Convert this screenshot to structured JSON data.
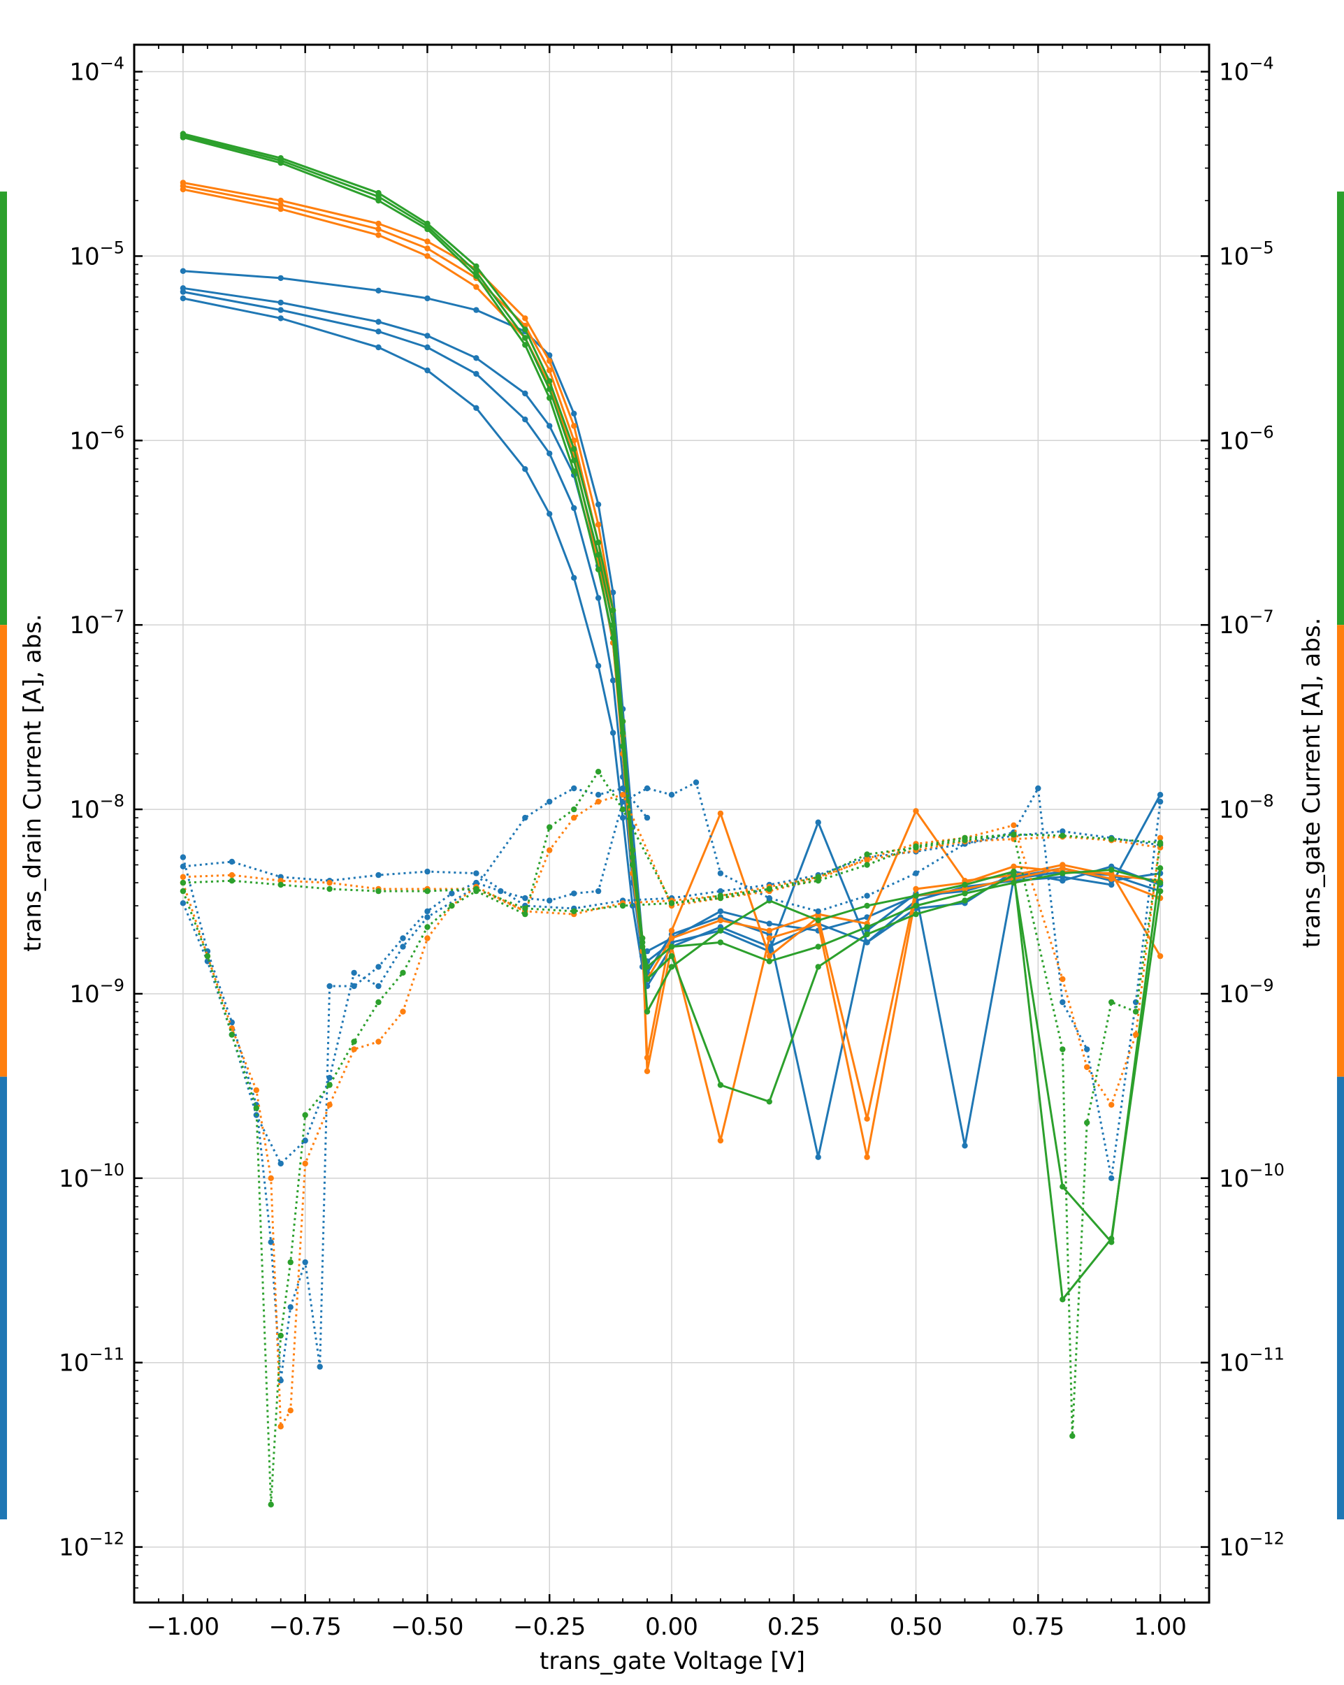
{
  "chart_data": {
    "type": "line",
    "title": "",
    "xlabel": "trans_gate Voltage [V]",
    "ylabel_left": "trans_drain Current [A], abs.",
    "ylabel_right": "trans_gate Current [A], abs.",
    "xlim": [
      -1.1,
      1.1
    ],
    "ylim": [
      5e-13,
      0.00014
    ],
    "yscale": "log",
    "grid": true,
    "legend": "none",
    "xticks": [
      -1.0,
      -0.75,
      -0.5,
      -0.25,
      0.0,
      0.25,
      0.5,
      0.75,
      1.0
    ],
    "xtick_labels": [
      "−1.00",
      "−0.75",
      "−0.50",
      "−0.25",
      "0.00",
      "0.25",
      "0.50",
      "0.75",
      "1.00"
    ],
    "yticks": [
      -12,
      -11,
      -10,
      -9,
      -8,
      -7,
      -6,
      -5,
      -4
    ],
    "ytick_base": "10",
    "ytick_exponents": [
      "−12",
      "−11",
      "−10",
      "−9",
      "−8",
      "−7",
      "−6",
      "−5",
      "−4"
    ],
    "colors": {
      "blue": "#1f77b4",
      "orange": "#ff7f0e",
      "green": "#2ca02c"
    },
    "side_bars": [
      {
        "color": "#2ca02c",
        "from_decade": -4.65,
        "to_decade": -7.0
      },
      {
        "color": "#ff7f0e",
        "from_decade": -7.0,
        "to_decade": -9.45
      },
      {
        "color": "#1f77b4",
        "from_decade": -9.45,
        "to_decade": -11.85
      }
    ],
    "series": [
      {
        "color": "#1f77b4",
        "style": "solid",
        "x": [
          -1.0,
          -0.8,
          -0.6,
          -0.5,
          -0.4,
          -0.3,
          -0.25,
          -0.2,
          -0.15,
          -0.12,
          -0.1,
          -0.08,
          -0.06,
          -0.05,
          0.0,
          0.1,
          0.2,
          0.3,
          0.4,
          0.5,
          0.6,
          0.7,
          0.8,
          0.9,
          1.0
        ],
        "y": [
          8.3e-06,
          7.6e-06,
          6.5e-06,
          5.9e-06,
          5.1e-06,
          3.9e-06,
          2.9e-06,
          1.4e-06,
          4.5e-07,
          1.5e-07,
          3.5e-08,
          8e-09,
          2e-09,
          1.1e-09,
          1.8e-09,
          2.3e-09,
          1.8e-09,
          2.4e-09,
          1.9e-09,
          3.2e-09,
          3.8e-09,
          4.1e-09,
          4.3e-09,
          3.9e-09,
          1.2e-08
        ]
      },
      {
        "color": "#1f77b4",
        "style": "solid",
        "x": [
          -1.0,
          -0.8,
          -0.6,
          -0.5,
          -0.4,
          -0.3,
          -0.25,
          -0.2,
          -0.15,
          -0.12,
          -0.1,
          -0.08,
          -0.06,
          -0.05,
          0.0,
          0.1,
          0.2,
          0.3,
          0.4,
          0.5,
          0.6,
          0.7,
          0.8,
          0.9,
          1.0
        ],
        "y": [
          6.7e-06,
          5.6e-06,
          4.4e-06,
          3.7e-06,
          2.8e-06,
          1.8e-06,
          1.2e-06,
          6.5e-07,
          2.1e-07,
          8e-08,
          2.2e-08,
          6e-09,
          1.9e-09,
          1.3e-09,
          2.1e-09,
          2.6e-09,
          2.1e-09,
          1.3e-10,
          2.2e-09,
          3.5e-09,
          1.5e-10,
          4.2e-09,
          4.6e-09,
          4.4e-09,
          3.6e-09
        ]
      },
      {
        "color": "#1f77b4",
        "style": "solid",
        "x": [
          -1.0,
          -0.8,
          -0.6,
          -0.5,
          -0.4,
          -0.3,
          -0.25,
          -0.2,
          -0.15,
          -0.12,
          -0.1,
          -0.08,
          -0.06,
          -0.05,
          0.0,
          0.1,
          0.2,
          0.3,
          0.4,
          0.5,
          0.6,
          0.7,
          0.8,
          0.9,
          1.0
        ],
        "y": [
          6.4e-06,
          5.1e-06,
          3.9e-06,
          3.2e-06,
          2.3e-06,
          1.3e-06,
          8.5e-07,
          4.3e-07,
          1.4e-07,
          5e-08,
          1.5e-08,
          4e-09,
          1.6e-09,
          1.7e-09,
          2e-09,
          2.8e-09,
          2.4e-09,
          2.2e-09,
          2.6e-09,
          3.4e-09,
          3.6e-09,
          4.3e-09,
          4.8e-09,
          4.1e-09,
          4.5e-09
        ]
      },
      {
        "color": "#1f77b4",
        "style": "solid",
        "x": [
          -1.0,
          -0.8,
          -0.6,
          -0.5,
          -0.4,
          -0.3,
          -0.25,
          -0.2,
          -0.15,
          -0.12,
          -0.1,
          -0.08,
          -0.06,
          -0.05,
          0.0,
          0.1,
          0.2,
          0.3,
          0.4,
          0.5,
          0.6,
          0.7,
          0.8,
          0.9,
          1.0
        ],
        "y": [
          5.9e-06,
          4.6e-06,
          3.2e-06,
          2.4e-06,
          1.5e-06,
          7e-07,
          4e-07,
          1.8e-07,
          6e-08,
          2.6e-08,
          9e-09,
          3e-09,
          1.4e-09,
          1.5e-09,
          1.9e-09,
          2.2e-09,
          1.7e-09,
          8.5e-09,
          1.9e-09,
          2.9e-09,
          3.1e-09,
          4.6e-09,
          4.1e-09,
          4.9e-09,
          3.9e-09
        ]
      },
      {
        "color": "#ff7f0e",
        "style": "solid",
        "x": [
          -1.0,
          -0.8,
          -0.6,
          -0.5,
          -0.4,
          -0.3,
          -0.25,
          -0.2,
          -0.15,
          -0.12,
          -0.1,
          -0.08,
          -0.06,
          -0.05,
          0.0,
          0.1,
          0.2,
          0.3,
          0.4,
          0.5,
          0.6,
          0.7,
          0.8,
          0.9,
          1.0
        ],
        "y": [
          2.5e-05,
          2e-05,
          1.5e-05,
          1.2e-05,
          8.5e-06,
          4.6e-06,
          2.7e-06,
          1.2e-06,
          3.5e-07,
          1.2e-07,
          3e-08,
          6e-09,
          2e-09,
          3.8e-10,
          1.8e-09,
          1.6e-10,
          2e-09,
          2.4e-09,
          1.3e-10,
          3.4e-09,
          3.7e-09,
          4.2e-09,
          4.8e-09,
          4.2e-09,
          3.3e-09
        ]
      },
      {
        "color": "#ff7f0e",
        "style": "solid",
        "x": [
          -1.0,
          -0.8,
          -0.6,
          -0.5,
          -0.4,
          -0.3,
          -0.25,
          -0.2,
          -0.15,
          -0.12,
          -0.1,
          -0.08,
          -0.06,
          -0.05,
          0.0,
          0.1,
          0.2,
          0.3,
          0.4,
          0.5,
          0.6,
          0.7,
          0.8,
          0.9,
          1.0
        ],
        "y": [
          2.4e-05,
          1.9e-05,
          1.4e-05,
          1.1e-05,
          7.6e-06,
          4.2e-06,
          2.4e-06,
          1e-06,
          2.8e-07,
          1e-07,
          2.5e-08,
          5e-09,
          1.8e-09,
          4.5e-10,
          2.2e-09,
          9.5e-09,
          1.6e-09,
          2.6e-09,
          2.1e-10,
          3.7e-09,
          4e-09,
          4.9e-09,
          4.6e-09,
          4.5e-09,
          1.6e-09
        ]
      },
      {
        "color": "#ff7f0e",
        "style": "solid",
        "x": [
          -1.0,
          -0.8,
          -0.6,
          -0.5,
          -0.4,
          -0.3,
          -0.25,
          -0.2,
          -0.15,
          -0.12,
          -0.1,
          -0.08,
          -0.06,
          -0.05,
          0.0,
          0.1,
          0.2,
          0.3,
          0.4,
          0.5,
          0.6,
          0.7,
          0.8,
          0.9,
          1.0
        ],
        "y": [
          2.3e-05,
          1.8e-05,
          1.3e-05,
          1e-05,
          6.8e-06,
          3.6e-06,
          2e-06,
          8.2e-07,
          2.2e-07,
          8e-08,
          2e-08,
          4.5e-09,
          1.7e-09,
          1.2e-09,
          2e-09,
          2.5e-09,
          2.2e-09,
          2.7e-09,
          2.4e-09,
          9.8e-09,
          4.1e-09,
          4.4e-09,
          5e-09,
          4.4e-09,
          4.1e-09
        ]
      },
      {
        "color": "#2ca02c",
        "style": "solid",
        "x": [
          -1.0,
          -0.8,
          -0.6,
          -0.5,
          -0.4,
          -0.3,
          -0.25,
          -0.2,
          -0.15,
          -0.12,
          -0.1,
          -0.08,
          -0.06,
          -0.05,
          0.0,
          0.1,
          0.2,
          0.3,
          0.4,
          0.5,
          0.6,
          0.7,
          0.8,
          0.9,
          1.0
        ],
        "y": [
          4.6e-05,
          3.4e-05,
          2.2e-05,
          1.5e-05,
          8.8e-06,
          4e-06,
          2.1e-06,
          9e-07,
          2.8e-07,
          1.2e-07,
          3e-08,
          6e-09,
          2e-09,
          1.4e-09,
          1.8e-09,
          1.9e-09,
          1.5e-09,
          1.8e-09,
          2.3e-09,
          3e-09,
          3.5e-09,
          4e-09,
          4.5e-09,
          4.7e-09,
          4e-09
        ]
      },
      {
        "color": "#2ca02c",
        "style": "solid",
        "x": [
          -1.0,
          -0.8,
          -0.6,
          -0.5,
          -0.4,
          -0.3,
          -0.25,
          -0.2,
          -0.15,
          -0.12,
          -0.1,
          -0.08,
          -0.06,
          -0.05,
          0.0,
          0.1,
          0.2,
          0.3,
          0.4,
          0.5,
          0.6,
          0.7,
          0.8,
          0.9,
          1.0
        ],
        "y": [
          4.5e-05,
          3.3e-05,
          2.1e-05,
          1.45e-05,
          8.2e-06,
          3.6e-06,
          1.9e-06,
          7.8e-07,
          2.4e-07,
          1e-07,
          2.6e-08,
          5.5e-09,
          1.9e-09,
          1.2e-09,
          1.6e-09,
          3.2e-10,
          2.6e-10,
          1.4e-09,
          2.1e-09,
          2.7e-09,
          3.2e-09,
          4.4e-09,
          9e-11,
          4.5e-11,
          4.8e-09
        ]
      },
      {
        "color": "#2ca02c",
        "style": "solid",
        "x": [
          -1.0,
          -0.8,
          -0.6,
          -0.5,
          -0.4,
          -0.3,
          -0.25,
          -0.2,
          -0.15,
          -0.12,
          -0.1,
          -0.08,
          -0.06,
          -0.05,
          0.0,
          0.1,
          0.2,
          0.3,
          0.4,
          0.5,
          0.6,
          0.7,
          0.8,
          0.9,
          1.0
        ],
        "y": [
          4.4e-05,
          3.2e-05,
          2e-05,
          1.4e-05,
          7.8e-06,
          3.3e-06,
          1.7e-06,
          6.8e-07,
          2e-07,
          8.5e-08,
          2.2e-08,
          5e-09,
          1.8e-09,
          8e-10,
          1.4e-09,
          2.2e-09,
          3.2e-09,
          2.5e-09,
          3e-09,
          3.4e-09,
          3.9e-09,
          4.6e-09,
          2.2e-11,
          4.7e-11,
          3.6e-09
        ]
      },
      {
        "color": "#1f77b4",
        "style": "dotted",
        "x": [
          -1.0,
          -0.95,
          -0.9,
          -0.85,
          -0.82,
          -0.8,
          -0.78,
          -0.75,
          -0.72,
          -0.7,
          -0.65,
          -0.6,
          -0.55,
          -0.5,
          -0.45,
          -0.4,
          -0.35,
          -0.3,
          -0.25,
          -0.2,
          -0.15,
          -0.1,
          -0.05,
          0.0,
          0.05,
          0.1,
          0.2,
          0.3,
          0.4,
          0.5,
          0.6,
          0.7,
          0.75,
          0.8,
          0.85,
          0.9,
          0.95,
          1.0
        ],
        "y": [
          5.5e-09,
          1.7e-09,
          7e-10,
          2.5e-10,
          4.5e-11,
          8e-12,
          2e-11,
          3.5e-11,
          9.5e-12,
          1.1e-09,
          1.1e-09,
          1.4e-09,
          2e-09,
          2.8e-09,
          3.5e-09,
          4e-09,
          3.6e-09,
          3.3e-09,
          3.2e-09,
          3.5e-09,
          3.6e-09,
          1.1e-08,
          1.3e-08,
          1.2e-08,
          1.4e-08,
          4.5e-09,
          3.3e-09,
          2.8e-09,
          3.4e-09,
          4.5e-09,
          6.5e-09,
          7.5e-09,
          1.3e-08,
          9e-10,
          5e-10,
          1e-10,
          9e-10,
          1.1e-08
        ]
      },
      {
        "color": "#1f77b4",
        "style": "dotted",
        "x": [
          -1.0,
          -0.9,
          -0.8,
          -0.7,
          -0.6,
          -0.5,
          -0.4,
          -0.3,
          -0.2,
          -0.1,
          0.0,
          0.1,
          0.2,
          0.3,
          0.4,
          0.5,
          0.6,
          0.7,
          0.8,
          0.9,
          1.0
        ],
        "y": [
          4.9e-09,
          5.2e-09,
          4.3e-09,
          4.1e-09,
          4.4e-09,
          4.6e-09,
          4.5e-09,
          3e-09,
          2.9e-09,
          3.2e-09,
          3.3e-09,
          3.6e-09,
          3.9e-09,
          4.4e-09,
          5.5e-09,
          5.9e-09,
          6.5e-09,
          7.2e-09,
          7.6e-09,
          7e-09,
          6.4e-09
        ]
      },
      {
        "color": "#1f77b4",
        "style": "dotted",
        "x": [
          -1.0,
          -0.95,
          -0.9,
          -0.85,
          -0.8,
          -0.75,
          -0.7,
          -0.65,
          -0.6,
          -0.55,
          -0.5,
          -0.4,
          -0.3,
          -0.25,
          -0.2,
          -0.15,
          -0.1,
          -0.05
        ],
        "y": [
          3.1e-09,
          1.5e-09,
          6e-10,
          2.2e-10,
          1.2e-10,
          1.6e-10,
          3.5e-10,
          1.3e-09,
          1.1e-09,
          1.8e-09,
          2.6e-09,
          3.8e-09,
          9e-09,
          1.1e-08,
          1.3e-08,
          1.2e-08,
          1.3e-08,
          9e-09
        ]
      },
      {
        "color": "#ff7f0e",
        "style": "dotted",
        "x": [
          -1.0,
          -0.95,
          -0.9,
          -0.85,
          -0.82,
          -0.8,
          -0.78,
          -0.75,
          -0.7,
          -0.65,
          -0.6,
          -0.55,
          -0.5,
          -0.45,
          -0.4,
          -0.3,
          -0.25,
          -0.2,
          -0.15,
          -0.1,
          0.0,
          0.1,
          0.2,
          0.3,
          0.4,
          0.5,
          0.6,
          0.7,
          0.8,
          0.85,
          0.9,
          0.95,
          1.0
        ],
        "y": [
          4e-09,
          1.6e-09,
          6.5e-10,
          3e-10,
          1e-10,
          4.5e-12,
          5.5e-12,
          1.2e-10,
          2.5e-10,
          5e-10,
          5.5e-10,
          8e-10,
          2e-09,
          3e-09,
          3.8e-09,
          2.8e-09,
          6e-09,
          9e-09,
          1.1e-08,
          1.2e-08,
          3e-09,
          3.3e-09,
          3.6e-09,
          4.2e-09,
          5.4e-09,
          6.5e-09,
          7e-09,
          8.2e-09,
          1.2e-09,
          4e-10,
          2.5e-10,
          6e-10,
          7e-09
        ]
      },
      {
        "color": "#ff7f0e",
        "style": "dotted",
        "x": [
          -1.0,
          -0.9,
          -0.8,
          -0.7,
          -0.6,
          -0.5,
          -0.4,
          -0.3,
          -0.2,
          -0.1,
          0.0,
          0.1,
          0.2,
          0.3,
          0.4,
          0.5,
          0.6,
          0.7,
          0.8,
          0.9,
          1.0
        ],
        "y": [
          4.3e-09,
          4.4e-09,
          4.1e-09,
          4e-09,
          3.7e-09,
          3.7e-09,
          3.7e-09,
          2.8e-09,
          2.7e-09,
          3.1e-09,
          3.2e-09,
          3.4e-09,
          3.8e-09,
          4.3e-09,
          5.3e-09,
          6e-09,
          6.7e-09,
          6.9e-09,
          7.1e-09,
          6.8e-09,
          6.2e-09
        ]
      },
      {
        "color": "#2ca02c",
        "style": "dotted",
        "x": [
          -1.0,
          -0.95,
          -0.9,
          -0.85,
          -0.82,
          -0.8,
          -0.78,
          -0.75,
          -0.7,
          -0.65,
          -0.6,
          -0.55,
          -0.5,
          -0.45,
          -0.4,
          -0.3,
          -0.25,
          -0.2,
          -0.15,
          -0.1,
          0.0,
          0.1,
          0.2,
          0.3,
          0.4,
          0.5,
          0.6,
          0.7,
          0.8,
          0.82,
          0.85,
          0.9,
          0.95,
          1.0
        ],
        "y": [
          3.6e-09,
          1.6e-09,
          6e-10,
          2.4e-10,
          1.7e-12,
          1.4e-11,
          3.5e-11,
          2.2e-10,
          3.2e-10,
          5.5e-10,
          9e-10,
          1.3e-09,
          2.3e-09,
          3e-09,
          3.6e-09,
          2.7e-09,
          8e-09,
          1e-08,
          1.6e-08,
          1e-08,
          3.1e-09,
          3.4e-09,
          3.7e-09,
          4.3e-09,
          5.7e-09,
          6.2e-09,
          6.8e-09,
          7.3e-09,
          5e-10,
          4e-12,
          2e-10,
          9e-10,
          8e-10,
          6.5e-09
        ]
      },
      {
        "color": "#2ca02c",
        "style": "dotted",
        "x": [
          -1.0,
          -0.9,
          -0.8,
          -0.7,
          -0.6,
          -0.5,
          -0.4,
          -0.3,
          -0.2,
          -0.1,
          0.0,
          0.1,
          0.2,
          0.3,
          0.4,
          0.5,
          0.6,
          0.7,
          0.8,
          0.9,
          1.0
        ],
        "y": [
          4e-09,
          4.1e-09,
          3.9e-09,
          3.7e-09,
          3.6e-09,
          3.6e-09,
          3.7e-09,
          2.9e-09,
          2.8e-09,
          3e-09,
          3.1e-09,
          3.3e-09,
          3.7e-09,
          4.1e-09,
          5e-09,
          6.3e-09,
          7e-09,
          7.3e-09,
          7.2e-09,
          6.9e-09,
          6.6e-09
        ]
      }
    ]
  }
}
